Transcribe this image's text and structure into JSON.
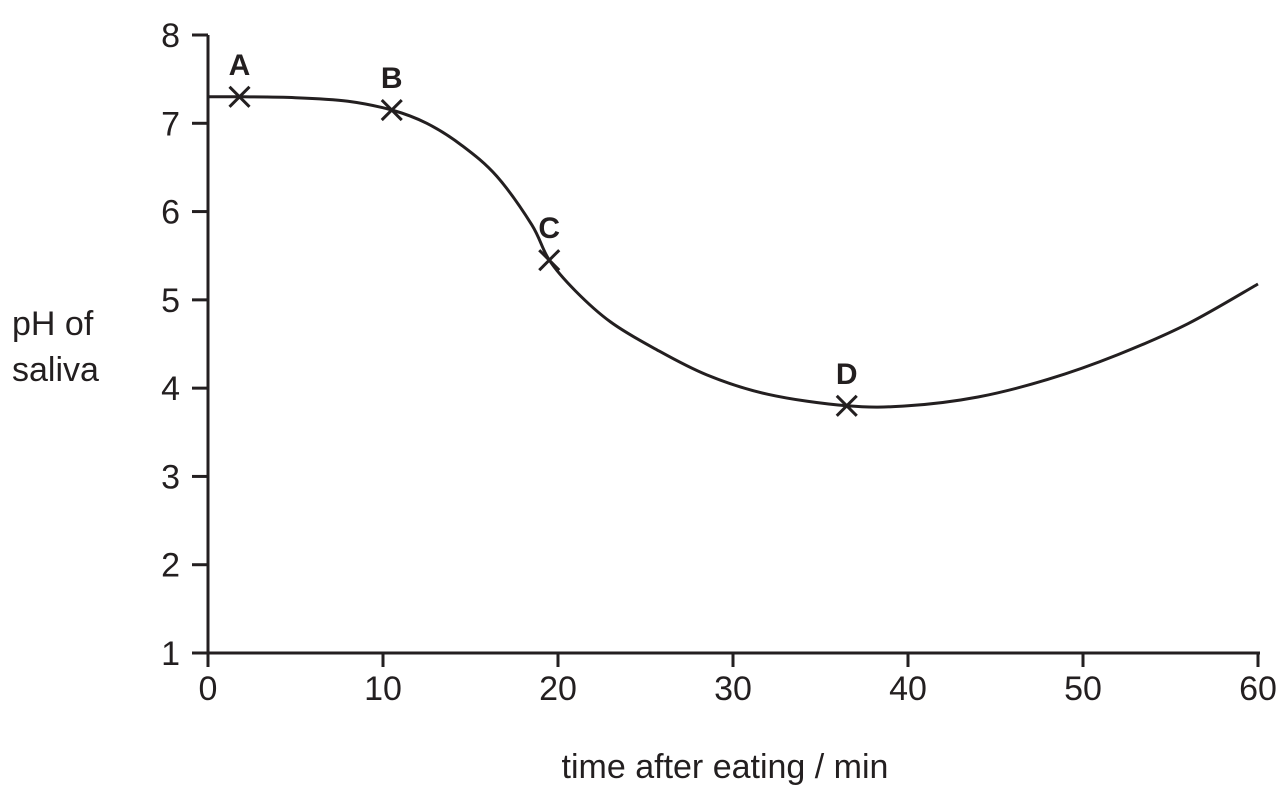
{
  "chart_data": {
    "type": "line",
    "title": "",
    "xlabel": "time after eating / min",
    "ylabel": "pH of saliva",
    "xlim": [
      0,
      60
    ],
    "ylim": [
      1,
      8
    ],
    "x_ticks": [
      0,
      10,
      20,
      30,
      40,
      50,
      60
    ],
    "y_ticks": [
      1,
      2,
      3,
      4,
      5,
      6,
      7,
      8
    ],
    "grid": false,
    "colors": {
      "line": "#231f20",
      "axis": "#231f20",
      "text": "#231f20"
    },
    "series": [
      {
        "x": [
          0,
          2,
          5,
          8,
          10.5,
          12.5,
          14.5,
          16.5,
          18.5,
          19.5,
          21,
          23,
          25.5,
          28.5,
          32,
          36.5,
          40,
          44,
          48,
          52,
          56,
          60
        ],
        "y": [
          7.3,
          7.3,
          7.29,
          7.25,
          7.15,
          7.0,
          6.75,
          6.4,
          5.85,
          5.45,
          5.1,
          4.75,
          4.45,
          4.15,
          3.93,
          3.8,
          3.8,
          3.9,
          4.1,
          4.38,
          4.73,
          5.18
        ]
      }
    ],
    "points": [
      {
        "label": "A",
        "x": 1.8,
        "y": 7.3
      },
      {
        "label": "B",
        "x": 10.5,
        "y": 7.15
      },
      {
        "label": "C",
        "x": 19.5,
        "y": 5.45
      },
      {
        "label": "D",
        "x": 36.5,
        "y": 3.8
      }
    ]
  }
}
